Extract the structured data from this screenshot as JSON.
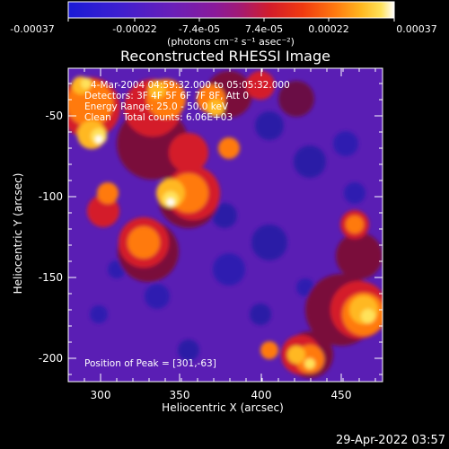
{
  "colorbar": {
    "tick_labels": [
      "-0.00037",
      "-0.00022",
      "-7.4e-05",
      "7.4e-05",
      "0.00022",
      "0.00037"
    ],
    "units_label": "(photons cm⁻² s⁻¹ asec⁻²)",
    "colors": [
      "#1a1ad6",
      "#3c1fd0",
      "#6a1fb8",
      "#8a1a9a",
      "#a01a78",
      "#d41c2a",
      "#f03a10",
      "#ff7a10",
      "#ffb820",
      "#ffe25a",
      "#ffffff"
    ]
  },
  "image": {
    "title": "Reconstructed RHESSI Image",
    "info_lines": [
      "4-Mar-2004 04:59:32.000 to 05:05:32.000",
      "Detectors: 3F 4F 5F 6F 7F 8F, Att 0",
      "Energy Range: 25.0 - 50.0 keV",
      "Clean    Total counts: 6.06E+03"
    ],
    "peak_label": "Position of Peak = [301,-63]",
    "xlabel": "Heliocentric X (arcsec)",
    "ylabel": "Heliocentric Y (arcsec)",
    "x_ticks": [
      "300",
      "350",
      "400",
      "450"
    ],
    "y_ticks": [
      "-50",
      "-100",
      "-150",
      "-200"
    ]
  },
  "footer": {
    "date_time": "29-Apr-2022 03:57"
  }
}
